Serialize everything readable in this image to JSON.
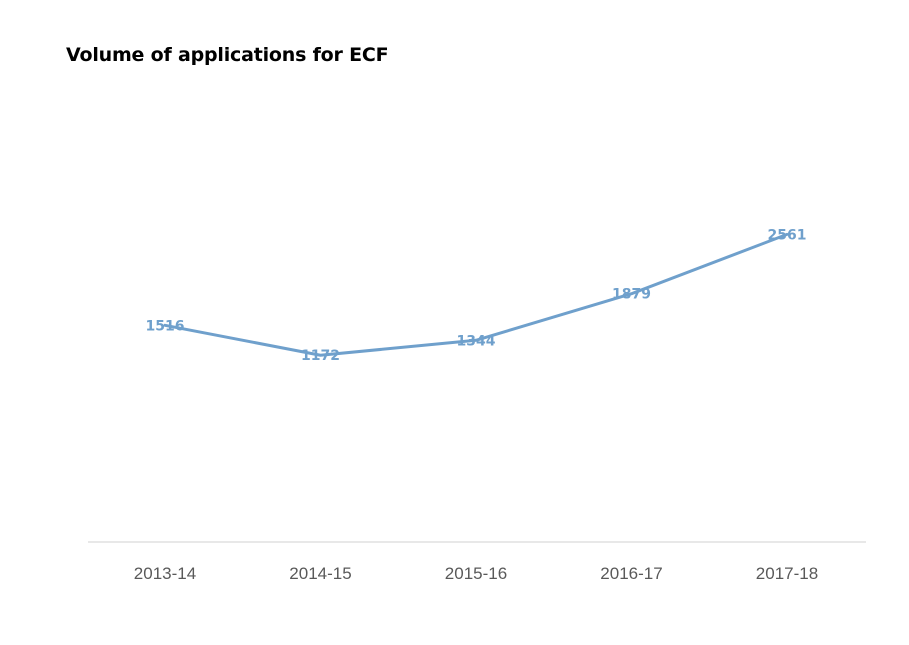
{
  "chart_data": {
    "type": "line",
    "title": "Volume of applications for ECF",
    "xlabel": "",
    "ylabel": "",
    "categories": [
      "2013-14",
      "2014-15",
      "2015-16",
      "2016-17",
      "2017-18"
    ],
    "series": [
      {
        "values": [
          1516,
          1172,
          1344,
          1879,
          2561
        ],
        "color": "#6fa0cc"
      }
    ],
    "data_labels": [
      "1516",
      "1172",
      "1344",
      "1879",
      "2561"
    ],
    "grid": false,
    "legend": "none",
    "axis_color": "#d9d9d9",
    "tick_color": "#595959"
  }
}
